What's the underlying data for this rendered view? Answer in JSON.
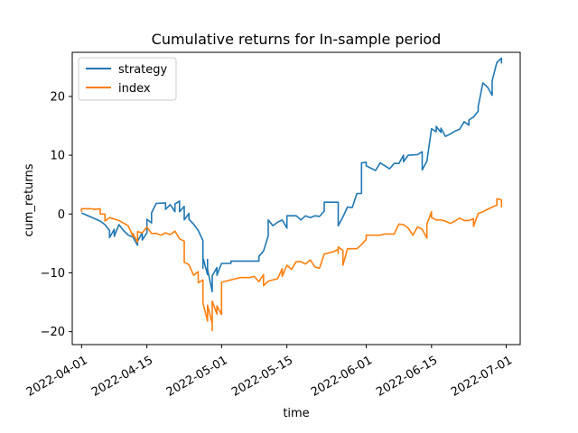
{
  "chart_data": {
    "type": "line",
    "title": "Cumulative returns for In-sample period",
    "xlabel": "time",
    "ylabel": "cum_returns",
    "x_ticks": [
      "2022-04-01",
      "2022-04-15",
      "2022-05-01",
      "2022-05-15",
      "2022-06-01",
      "2022-06-15",
      "2022-07-01"
    ],
    "y_ticks": [
      -20,
      -10,
      0,
      10,
      20
    ],
    "xlim": [
      "2022-03-30",
      "2022-07-04"
    ],
    "ylim": [
      -22.2,
      27.5
    ],
    "grid": false,
    "legend_position": "top-left",
    "series": [
      {
        "name": "strategy",
        "color": "#1f77b4",
        "points": [
          [
            "2022-04-01",
            0.2
          ],
          [
            "2022-04-05",
            -1.2
          ],
          [
            "2022-04-06",
            -1.8
          ],
          [
            "2022-04-07",
            -2.8
          ],
          [
            "2022-04-07",
            -4.0
          ],
          [
            "2022-04-08",
            -2.6
          ],
          [
            "2022-04-08",
            -3.8
          ],
          [
            "2022-04-09",
            -1.8
          ],
          [
            "2022-04-10",
            -2.8
          ],
          [
            "2022-04-11",
            -3.6
          ],
          [
            "2022-04-12",
            -3.9
          ],
          [
            "2022-04-13",
            -5.3
          ],
          [
            "2022-04-13",
            -4.6
          ],
          [
            "2022-04-14",
            -3.2
          ],
          [
            "2022-04-14",
            -4.4
          ],
          [
            "2022-04-15",
            -3.2
          ],
          [
            "2022-04-15",
            -0.9
          ],
          [
            "2022-04-16",
            -1.5
          ],
          [
            "2022-04-16",
            0.2
          ],
          [
            "2022-04-17",
            1.8
          ],
          [
            "2022-04-19",
            1.9
          ],
          [
            "2022-04-19",
            0.8
          ],
          [
            "2022-04-20",
            1.6
          ],
          [
            "2022-04-21",
            0.4
          ],
          [
            "2022-04-21",
            1.7
          ],
          [
            "2022-04-22",
            2.2
          ],
          [
            "2022-04-22",
            0.4
          ],
          [
            "2022-04-23",
            1.3
          ],
          [
            "2022-04-23",
            -1.0
          ],
          [
            "2022-04-24",
            0.1
          ],
          [
            "2022-04-24",
            -0.9
          ],
          [
            "2022-04-25",
            -1.7
          ],
          [
            "2022-04-26",
            -2.8
          ],
          [
            "2022-04-27",
            -4.5
          ],
          [
            "2022-04-27",
            -9.2
          ],
          [
            "2022-04-27",
            -7.4
          ],
          [
            "2022-04-28",
            -10.3
          ],
          [
            "2022-04-28",
            -7.7
          ],
          [
            "2022-04-28",
            -9.4
          ],
          [
            "2022-04-29",
            -13.2
          ],
          [
            "2022-04-29",
            -10.5
          ],
          [
            "2022-04-30",
            -9.1
          ],
          [
            "2022-04-30",
            -10.4
          ],
          [
            "2022-05-01",
            -8.4
          ],
          [
            "2022-05-03",
            -8.4
          ],
          [
            "2022-05-03",
            -8.0
          ],
          [
            "2022-05-07",
            -8.0
          ],
          [
            "2022-05-09",
            -8.0
          ],
          [
            "2022-05-09",
            -7.2
          ],
          [
            "2022-05-10",
            -6.3
          ],
          [
            "2022-05-11",
            -3.7
          ],
          [
            "2022-05-11",
            -1.0
          ],
          [
            "2022-05-12",
            -2.0
          ],
          [
            "2022-05-13",
            -1.4
          ],
          [
            "2022-05-14",
            -1.0
          ],
          [
            "2022-05-15",
            -2.4
          ],
          [
            "2022-05-15",
            -0.3
          ],
          [
            "2022-05-17",
            -0.3
          ],
          [
            "2022-05-18",
            -1.0
          ],
          [
            "2022-05-19",
            -0.3
          ],
          [
            "2022-05-20",
            -0.6
          ],
          [
            "2022-05-21",
            -0.3
          ],
          [
            "2022-05-22",
            -0.4
          ],
          [
            "2022-05-23",
            0.5
          ],
          [
            "2022-05-23",
            2.0
          ],
          [
            "2022-05-26",
            2.0
          ],
          [
            "2022-05-26",
            -0.8
          ],
          [
            "2022-05-26",
            -2.0
          ],
          [
            "2022-05-27",
            -0.5
          ],
          [
            "2022-05-28",
            1.2
          ],
          [
            "2022-05-29",
            1.1
          ],
          [
            "2022-05-30",
            3.5
          ],
          [
            "2022-05-31",
            3.5
          ],
          [
            "2022-05-31",
            8.7
          ],
          [
            "2022-06-01",
            8.8
          ],
          [
            "2022-06-01",
            8.2
          ],
          [
            "2022-06-03",
            7.4
          ],
          [
            "2022-06-04",
            8.7
          ],
          [
            "2022-06-06",
            7.7
          ],
          [
            "2022-06-07",
            8.6
          ],
          [
            "2022-06-08",
            8.6
          ],
          [
            "2022-06-09",
            10.0
          ],
          [
            "2022-06-09",
            8.9
          ],
          [
            "2022-06-10",
            10.0
          ],
          [
            "2022-06-12",
            10.1
          ],
          [
            "2022-06-13",
            10.6
          ],
          [
            "2022-06-13",
            7.5
          ],
          [
            "2022-06-14",
            9.0
          ],
          [
            "2022-06-15",
            14.5
          ],
          [
            "2022-06-16",
            14.0
          ],
          [
            "2022-06-16",
            14.9
          ],
          [
            "2022-06-17",
            13.9
          ],
          [
            "2022-06-17",
            14.6
          ],
          [
            "2022-06-18",
            13.2
          ],
          [
            "2022-06-19",
            13.6
          ],
          [
            "2022-06-20",
            14.1
          ],
          [
            "2022-06-21",
            14.4
          ],
          [
            "2022-06-22",
            15.7
          ],
          [
            "2022-06-23",
            15.1
          ],
          [
            "2022-06-23",
            16.0
          ],
          [
            "2022-06-24",
            16.5
          ],
          [
            "2022-06-25",
            17.5
          ],
          [
            "2022-06-25",
            18.3
          ],
          [
            "2022-06-26",
            22.3
          ],
          [
            "2022-06-27",
            21.6
          ],
          [
            "2022-06-28",
            20.2
          ],
          [
            "2022-06-28",
            22.7
          ],
          [
            "2022-06-29",
            25.8
          ],
          [
            "2022-06-30",
            26.5
          ],
          [
            "2022-06-30",
            25.6
          ]
        ]
      },
      {
        "name": "index",
        "color": "#ff7f0e",
        "points": [
          [
            "2022-04-01",
            0.4
          ],
          [
            "2022-04-01",
            0.9
          ],
          [
            "2022-04-03",
            0.9
          ],
          [
            "2022-04-04",
            0.8
          ],
          [
            "2022-04-05",
            0.9
          ],
          [
            "2022-04-05",
            0.0
          ],
          [
            "2022-04-06",
            0.0
          ],
          [
            "2022-04-06",
            -1.2
          ],
          [
            "2022-04-07",
            -0.6
          ],
          [
            "2022-04-09",
            -1.1
          ],
          [
            "2022-04-11",
            -2.0
          ],
          [
            "2022-04-12",
            -3.8
          ],
          [
            "2022-04-12",
            -3.3
          ],
          [
            "2022-04-13",
            -4.8
          ],
          [
            "2022-04-13",
            -3.0
          ],
          [
            "2022-04-14",
            -3.2
          ],
          [
            "2022-04-15",
            -2.2
          ],
          [
            "2022-04-16",
            -3.3
          ],
          [
            "2022-04-17",
            -3.3
          ],
          [
            "2022-04-18",
            -3.6
          ],
          [
            "2022-04-19",
            -3.2
          ],
          [
            "2022-04-20",
            -3.5
          ],
          [
            "2022-04-21",
            -2.9
          ],
          [
            "2022-04-22",
            -4.2
          ],
          [
            "2022-04-23",
            -4.6
          ],
          [
            "2022-04-23",
            -6.6
          ],
          [
            "2022-04-23",
            -8.2
          ],
          [
            "2022-04-24",
            -8.6
          ],
          [
            "2022-04-25",
            -10.4
          ],
          [
            "2022-04-26",
            -9.8
          ],
          [
            "2022-04-26",
            -11.7
          ],
          [
            "2022-04-27",
            -11.2
          ],
          [
            "2022-04-27",
            -15.1
          ],
          [
            "2022-04-28",
            -18.2
          ],
          [
            "2022-04-28",
            -15.5
          ],
          [
            "2022-04-29",
            -18.6
          ],
          [
            "2022-04-29",
            -19.8
          ],
          [
            "2022-04-29",
            -14.8
          ],
          [
            "2022-04-30",
            -17.0
          ],
          [
            "2022-04-30",
            -15.6
          ],
          [
            "2022-05-01",
            -17.1
          ],
          [
            "2022-05-01",
            -11.6
          ],
          [
            "2022-05-05",
            -10.8
          ],
          [
            "2022-05-07",
            -10.8
          ],
          [
            "2022-05-08",
            -10.6
          ],
          [
            "2022-05-09",
            -11.5
          ],
          [
            "2022-05-10",
            -10.3
          ],
          [
            "2022-05-10",
            -12.2
          ],
          [
            "2022-05-11",
            -11.4
          ],
          [
            "2022-05-13",
            -11.0
          ],
          [
            "2022-05-14",
            -9.3
          ],
          [
            "2022-05-14",
            -10.6
          ],
          [
            "2022-05-15",
            -8.7
          ],
          [
            "2022-05-16",
            -9.4
          ],
          [
            "2022-05-17",
            -8.1
          ],
          [
            "2022-05-18",
            -8.1
          ],
          [
            "2022-05-19",
            -8.5
          ],
          [
            "2022-05-20",
            -7.8
          ],
          [
            "2022-05-21",
            -9.0
          ],
          [
            "2022-05-22",
            -9.2
          ],
          [
            "2022-05-23",
            -6.8
          ],
          [
            "2022-05-24",
            -6.6
          ],
          [
            "2022-05-25",
            -6.4
          ],
          [
            "2022-05-26",
            -6.0
          ],
          [
            "2022-05-26",
            -6.7
          ],
          [
            "2022-05-26",
            -5.6
          ],
          [
            "2022-05-27",
            -6.2
          ],
          [
            "2022-05-27",
            -8.7
          ],
          [
            "2022-05-28",
            -5.9
          ],
          [
            "2022-05-30",
            -5.9
          ],
          [
            "2022-05-31",
            -5.2
          ],
          [
            "2022-06-01",
            -4.3
          ],
          [
            "2022-06-01",
            -3.6
          ],
          [
            "2022-06-04",
            -3.6
          ],
          [
            "2022-06-05",
            -3.4
          ],
          [
            "2022-06-07",
            -3.4
          ],
          [
            "2022-06-08",
            -1.7
          ],
          [
            "2022-06-09",
            -1.8
          ],
          [
            "2022-06-10",
            -2.4
          ],
          [
            "2022-06-11",
            -3.6
          ],
          [
            "2022-06-12",
            -2.2
          ],
          [
            "2022-06-13",
            -2.6
          ],
          [
            "2022-06-14",
            -4.1
          ],
          [
            "2022-06-14",
            -1.7
          ],
          [
            "2022-06-15",
            0.4
          ],
          [
            "2022-06-15",
            -0.6
          ],
          [
            "2022-06-16",
            -1.0
          ],
          [
            "2022-06-17",
            -1.0
          ],
          [
            "2022-06-18",
            -1.2
          ],
          [
            "2022-06-19",
            -1.6
          ],
          [
            "2022-06-20",
            -1.2
          ],
          [
            "2022-06-21",
            -0.7
          ],
          [
            "2022-06-22",
            -1.1
          ],
          [
            "2022-06-23",
            -1.1
          ],
          [
            "2022-06-24",
            -0.8
          ],
          [
            "2022-06-24",
            -2.1
          ],
          [
            "2022-06-25",
            0.1
          ],
          [
            "2022-06-26",
            0.4
          ],
          [
            "2022-06-27",
            0.8
          ],
          [
            "2022-06-28",
            1.2
          ],
          [
            "2022-06-29",
            1.5
          ],
          [
            "2022-06-29",
            2.6
          ],
          [
            "2022-06-30",
            2.4
          ],
          [
            "2022-06-30",
            1.1
          ]
        ]
      }
    ]
  }
}
